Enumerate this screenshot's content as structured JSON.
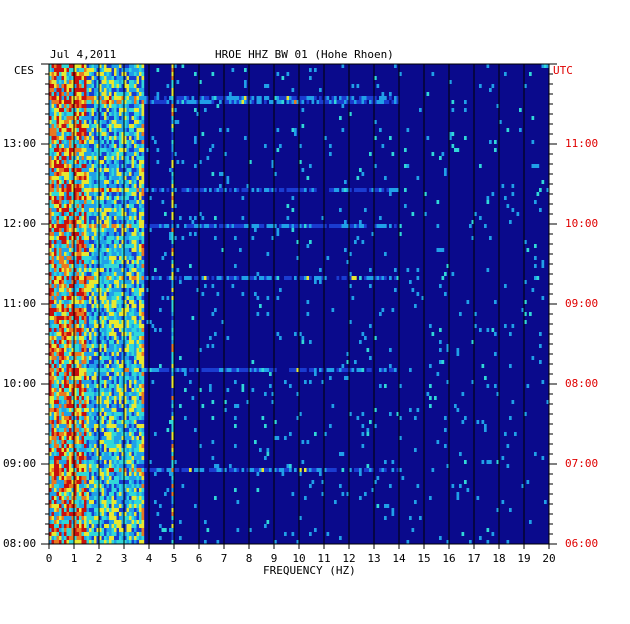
{
  "header": {
    "date": "Jul 4,2011",
    "station": "HROE HHZ BW 01 (Hohe Rhoen)"
  },
  "chart_data": {
    "type": "heatmap",
    "title": "HROE HHZ BW 01 (Hohe Rhoen)",
    "date": "Jul 4,2011",
    "xlabel": "FREQUENCY (HZ)",
    "xlim": [
      0,
      20
    ],
    "x_ticks": [
      "0",
      "1",
      "2",
      "3",
      "4",
      "5",
      "6",
      "7",
      "8",
      "9",
      "10",
      "11",
      "12",
      "13",
      "14",
      "15",
      "16",
      "17",
      "18",
      "19",
      "20"
    ],
    "left_axis": {
      "label": "CES",
      "ticks": [
        "13:00",
        "12:00",
        "11:00",
        "10:00",
        "09:00",
        "08:00"
      ],
      "hours": [
        13,
        12,
        11,
        10,
        9,
        8
      ]
    },
    "right_axis": {
      "label": "UTC",
      "ticks": [
        "11:00",
        "10:00",
        "09:00",
        "08:00",
        "07:00",
        "06:00"
      ],
      "hours": [
        11,
        10,
        9,
        8,
        7,
        6
      ]
    },
    "time_range_ces": [
      "08:00",
      "13:48"
    ],
    "colormap": [
      "#0a0a8c",
      "#1a3cd0",
      "#20a0e8",
      "#30d8d8",
      "#e8e830",
      "#e87820",
      "#c81010"
    ],
    "bands": [
      {
        "f0": 0,
        "f1": 1.5,
        "level": 0.85
      },
      {
        "f0": 1.5,
        "f1": 3.7,
        "level": 0.55
      },
      {
        "f0": 3.7,
        "f1": 3.8,
        "level": 0.7
      },
      {
        "f0": 4.9,
        "f1": 5.0,
        "level": 0.6
      }
    ]
  }
}
